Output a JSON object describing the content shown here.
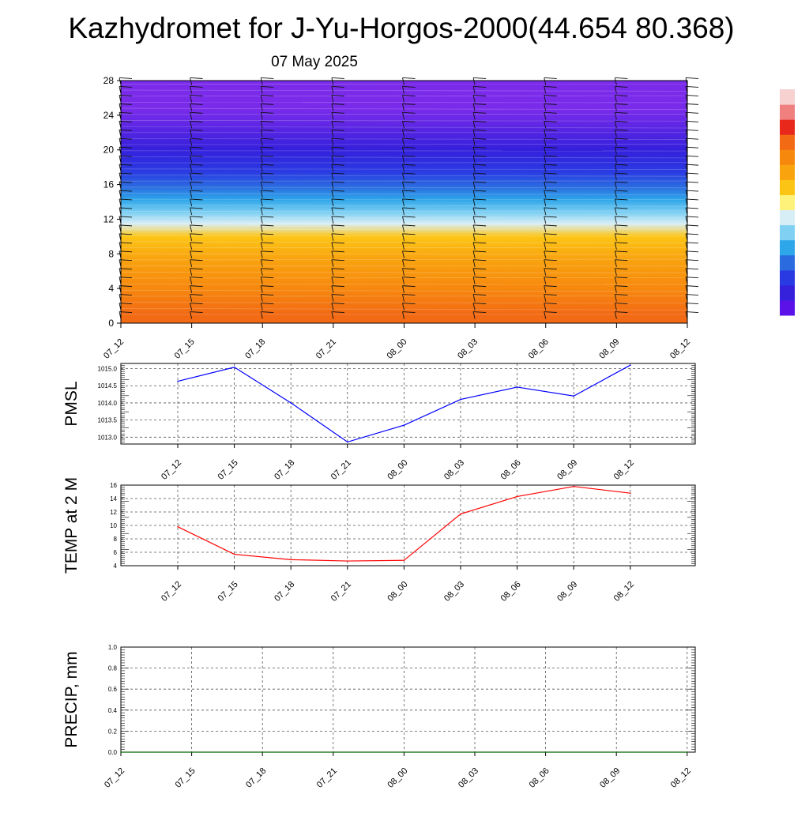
{
  "header": {
    "title": "Kazhydromet for J-Yu-Horgos-2000(44.654 80.368)",
    "subtitle": "07 May 2025"
  },
  "chart_data": [
    {
      "type": "heatmap",
      "x": [
        "07_12",
        "07_15",
        "07_18",
        "07_21",
        "08_00",
        "08_03",
        "08_06",
        "08_09",
        "08_12"
      ],
      "yticks": [
        "0",
        "4",
        "8",
        "12",
        "16",
        "20",
        "24",
        "28"
      ],
      "ylim": [
        0,
        28
      ],
      "bands": [
        {
          "from": 0,
          "to": 2,
          "color": "#f26a14"
        },
        {
          "from": 2,
          "to": 6,
          "color": "#f7880e"
        },
        {
          "from": 6,
          "to": 9,
          "color": "#f9a40f"
        },
        {
          "from": 9,
          "to": 11,
          "color": "#fcc515"
        },
        {
          "from": 11,
          "to": 12,
          "color": "#d8eef7"
        },
        {
          "from": 12,
          "to": 13.5,
          "color": "#7fd0f2"
        },
        {
          "from": 13.5,
          "to": 15,
          "color": "#2ea6ea"
        },
        {
          "from": 15,
          "to": 16.5,
          "color": "#2b6be0"
        },
        {
          "from": 16.5,
          "to": 18.5,
          "color": "#2a3ae2"
        },
        {
          "from": 18.5,
          "to": 21.5,
          "color": "#3520dc"
        },
        {
          "from": 21.5,
          "to": 28,
          "color": "#7a2bea"
        }
      ],
      "grid": false
    },
    {
      "type": "line",
      "ylabel": "PMSL",
      "x": [
        "07_12",
        "07_15",
        "07_18",
        "07_21",
        "08_00",
        "08_03",
        "08_06",
        "08_09",
        "08_12"
      ],
      "values": [
        1014.63,
        1015.04,
        1014.0,
        1012.86,
        1013.35,
        1014.1,
        1014.46,
        1014.2,
        1015.1
      ],
      "yticks": [
        "1013.0",
        "1013.5",
        "1014.0",
        "1014.5",
        "1015.0"
      ],
      "ylim": [
        1012.8,
        1015.15
      ],
      "color": "#0000ff",
      "grid": true
    },
    {
      "type": "line",
      "ylabel": "TEMP at 2 M",
      "x": [
        "07_12",
        "07_15",
        "07_18",
        "07_21",
        "08_00",
        "08_03",
        "08_06",
        "08_09",
        "08_12"
      ],
      "values": [
        9.8,
        5.7,
        4.9,
        4.7,
        4.8,
        11.7,
        14.3,
        15.8,
        14.8
      ],
      "yticks": [
        "4",
        "6",
        "8",
        "10",
        "12",
        "14",
        "16"
      ],
      "ylim": [
        4,
        16
      ],
      "color": "#ff0000",
      "grid": true
    },
    {
      "type": "line",
      "ylabel": "PRECIP, mm",
      "x": [
        "07_12",
        "07_15",
        "07_18",
        "07_21",
        "08_00",
        "08_03",
        "08_06",
        "08_09",
        "08_12"
      ],
      "values": [
        0,
        0,
        0,
        0,
        0,
        0,
        0,
        0,
        0
      ],
      "yticks": [
        "0.0",
        "0.2",
        "0.4",
        "0.6",
        "0.8",
        "1.0"
      ],
      "ylim": [
        0,
        1
      ],
      "color": "#006400",
      "grid": true
    }
  ],
  "colorbar": {
    "stops": [
      "#5b12e8",
      "#3520dc",
      "#2a3ae2",
      "#2b6be0",
      "#2ea6ea",
      "#7fd0f2",
      "#d8eef7",
      "#fff27a",
      "#fcc515",
      "#f9a40f",
      "#f7880e",
      "#f26a14",
      "#e8281a",
      "#f08080",
      "#f7d0d0"
    ]
  }
}
